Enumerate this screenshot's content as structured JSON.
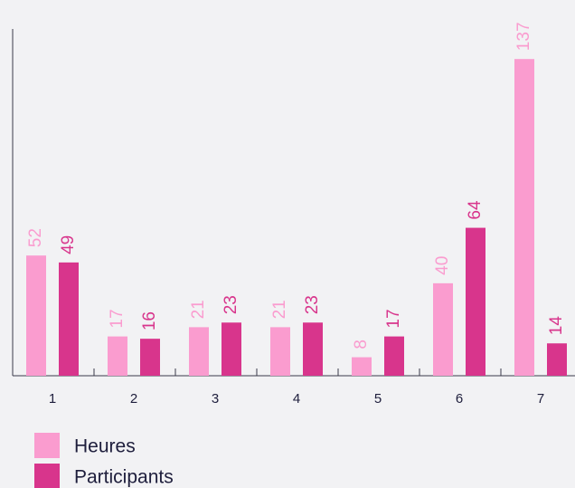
{
  "chart_data": {
    "type": "bar",
    "categories": [
      "1",
      "2",
      "3",
      "4",
      "5",
      "6",
      "7"
    ],
    "series": [
      {
        "name": "Heures",
        "color": "#fa9ccf",
        "values": [
          52,
          17,
          21,
          21,
          8,
          40,
          137
        ]
      },
      {
        "name": "Participants",
        "color": "#d8358c",
        "values": [
          49,
          16,
          23,
          23,
          17,
          64,
          14
        ]
      }
    ],
    "ylim": [
      0,
      150
    ]
  }
}
